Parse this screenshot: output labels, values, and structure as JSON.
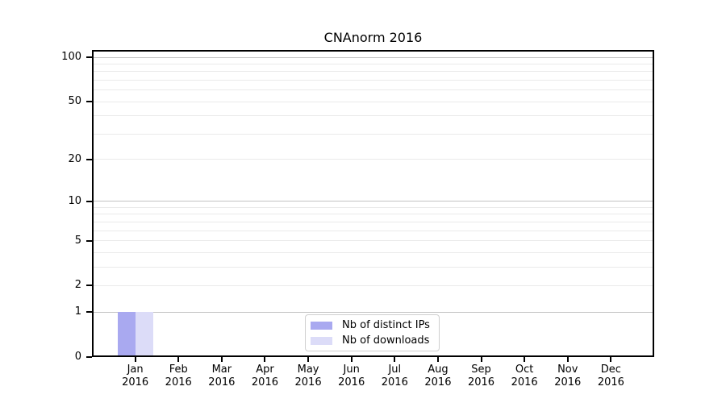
{
  "chart_data": {
    "type": "bar",
    "title": "CNAnorm 2016",
    "x_axis": {
      "categories": [
        "Jan",
        "Feb",
        "Mar",
        "Apr",
        "May",
        "Jun",
        "Jul",
        "Aug",
        "Sep",
        "Oct",
        "Nov",
        "Dec"
      ],
      "year_label": "2016"
    },
    "y_axis": {
      "scale": "log2(1+y)",
      "ticks": [
        0,
        1,
        2,
        5,
        10,
        20,
        50,
        100
      ],
      "minor_gridlines": [
        3,
        4,
        6,
        7,
        8,
        9,
        30,
        40,
        60,
        70,
        80,
        90
      ],
      "emphasized_gridlines": [
        1,
        10,
        100
      ],
      "max": 112,
      "grid": true
    },
    "series": [
      {
        "name": "Nb of distinct IPs",
        "color": "#a9a9f0",
        "values": [
          1,
          0,
          0,
          0,
          0,
          0,
          0,
          0,
          0,
          0,
          0,
          0
        ]
      },
      {
        "name": "Nb of downloads",
        "color": "#dcdcf8",
        "values": [
          1,
          0,
          0,
          0,
          0,
          0,
          0,
          0,
          0,
          0,
          0,
          0
        ]
      }
    ],
    "legend": {
      "position": "lower center"
    },
    "colors": {
      "grid_minor": "#eaeaea",
      "grid_major": "#c3c3c3",
      "axis": "#000000",
      "text": "#000000"
    }
  }
}
